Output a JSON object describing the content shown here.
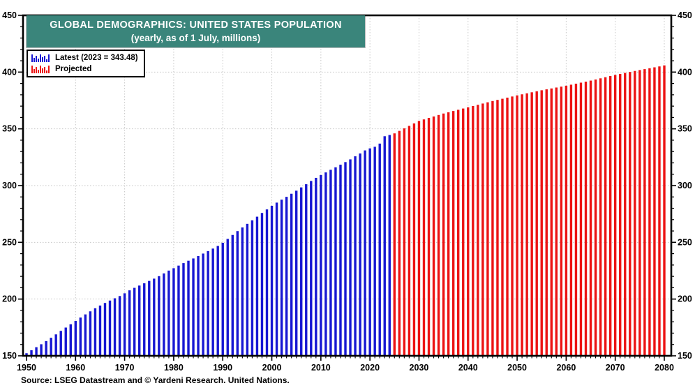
{
  "header": {
    "title": "GLOBAL DEMOGRAPHICS: UNITED STATES POPULATION",
    "subtitle": "(yearly, as of 1 July, millions)",
    "bg_color": "#3a857b"
  },
  "legend": {
    "items": [
      {
        "icon": "mini-bars-blue-icon",
        "label": "Latest (2023 = 343.48)",
        "color": "#1717d2"
      },
      {
        "icon": "mini-bars-red-icon",
        "label": "Projected",
        "color": "#ec1313"
      }
    ]
  },
  "source": "Source: LSEG Datastream and © Yardeni Research. United Nations.",
  "chart_data": {
    "type": "bar",
    "title": "GLOBAL DEMOGRAPHICS: UNITED STATES POPULATION",
    "subtitle": "(yearly, as of 1 July, millions)",
    "x_range": [
      1950,
      2080
    ],
    "ylim": [
      150,
      450
    ],
    "yticks": [
      150,
      200,
      250,
      300,
      350,
      400,
      450
    ],
    "ytick_minor_step": 10,
    "xticks": [
      1950,
      1960,
      1970,
      1980,
      1990,
      2000,
      2010,
      2020,
      2030,
      2040,
      2050,
      2060,
      2070,
      2080
    ],
    "grid": "dotted",
    "grid_color": "#c6c6c6",
    "legend_position": "top-left",
    "series": [
      {
        "name": "Latest",
        "color": "#1717d2",
        "start_year": 1950,
        "values": [
          152.3,
          154.9,
          157.6,
          160.2,
          163.0,
          165.9,
          168.9,
          172.0,
          174.9,
          177.8,
          180.7,
          183.7,
          186.5,
          189.2,
          191.9,
          194.3,
          196.6,
          198.7,
          200.7,
          202.7,
          205.1,
          207.7,
          209.9,
          211.9,
          213.9,
          216.0,
          218.0,
          220.2,
          222.6,
          225.1,
          227.2,
          229.5,
          231.7,
          233.8,
          235.8,
          237.9,
          240.1,
          242.3,
          244.5,
          246.8,
          249.6,
          253.0,
          256.5,
          259.9,
          263.1,
          266.3,
          269.4,
          272.6,
          275.9,
          279.0,
          282.2,
          285.0,
          287.6,
          290.1,
          292.8,
          295.5,
          298.4,
          301.2,
          304.1,
          306.8,
          309.3,
          311.6,
          313.9,
          316.1,
          318.4,
          320.7,
          323.1,
          325.8,
          328.3,
          331.0,
          332.8,
          334.2,
          337.0,
          343.48,
          344.6
        ]
      },
      {
        "name": "Projected",
        "color": "#ec1313",
        "start_year": 2025,
        "values": [
          346.0,
          348.2,
          350.4,
          352.6,
          354.8,
          357.0,
          358.3,
          359.6,
          360.9,
          362.2,
          363.5,
          364.6,
          365.7,
          366.8,
          367.9,
          369.0,
          370.1,
          371.2,
          372.3,
          373.4,
          374.5,
          375.5,
          376.5,
          377.5,
          378.5,
          379.5,
          380.4,
          381.3,
          382.2,
          383.1,
          384.0,
          384.8,
          385.6,
          386.4,
          387.2,
          388.0,
          388.9,
          389.8,
          390.7,
          391.6,
          392.5,
          393.5,
          394.5,
          395.5,
          396.5,
          397.5,
          398.4,
          399.3,
          400.1,
          401.0,
          401.8,
          402.6,
          403.4,
          404.2,
          405.0,
          405.9
        ]
      }
    ]
  }
}
